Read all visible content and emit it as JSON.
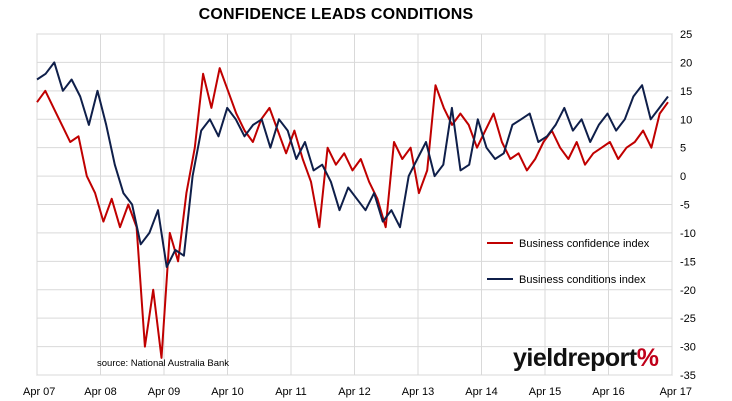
{
  "title": "CONFIDENCE LEADS CONDITIONS",
  "source_note": "source: National Australia Bank",
  "logo": {
    "text": "yieldreport",
    "symbol": "%"
  },
  "chart_data": {
    "type": "line",
    "title": "CONFIDENCE LEADS CONDITIONS",
    "xlabel": "",
    "ylabel": "",
    "x_tick_labels": [
      "Apr 07",
      "Apr 08",
      "Apr 09",
      "Apr 10",
      "Apr 11",
      "Apr 12",
      "Apr 13",
      "Apr 14",
      "Apr 15",
      "Apr 16",
      "Apr 17"
    ],
    "y_ticks": [
      25,
      20,
      15,
      10,
      5,
      0,
      -5,
      -10,
      -15,
      -20,
      -25,
      -30,
      -35
    ],
    "ylim": [
      -35,
      25
    ],
    "x_start": "Apr 07",
    "x_end": "Apr 17",
    "grid": true,
    "legend_position": "right-middle",
    "series": [
      {
        "name": "Business confidence index",
        "color": "#c00000",
        "values": [
          13,
          15,
          12,
          9,
          6,
          7,
          0,
          -3,
          -8,
          -4,
          -9,
          -5,
          -9,
          -30,
          -20,
          -32,
          -10,
          -15,
          -3,
          5,
          18,
          12,
          19,
          15,
          11,
          8,
          6,
          10,
          12,
          8,
          4,
          8,
          3,
          -1,
          -9,
          5,
          2,
          4,
          1,
          3,
          -1,
          -4,
          -9,
          6,
          3,
          5,
          -3,
          1,
          16,
          12,
          9,
          11,
          9,
          5,
          8,
          11,
          6,
          3,
          4,
          1,
          3,
          6,
          8,
          5,
          3,
          6,
          2,
          4,
          5,
          6,
          3,
          5,
          6,
          8,
          5,
          11,
          13
        ]
      },
      {
        "name": "Business conditions index",
        "color": "#0f1f4a",
        "values": [
          17,
          18,
          20,
          15,
          17,
          14,
          9,
          15,
          9,
          2,
          -3,
          -5,
          -12,
          -10,
          -6,
          -16,
          -13,
          -14,
          0,
          8,
          10,
          7,
          12,
          10,
          7,
          9,
          10,
          5,
          10,
          8,
          3,
          6,
          1,
          2,
          -1,
          -6,
          -2,
          -4,
          -6,
          -3,
          -8,
          -6,
          -9,
          0,
          3,
          6,
          0,
          2,
          12,
          1,
          2,
          10,
          5,
          3,
          4,
          9,
          10,
          11,
          6,
          7,
          9,
          12,
          8,
          10,
          6,
          9,
          11,
          8,
          10,
          14,
          16,
          10,
          12,
          14
        ]
      }
    ]
  }
}
